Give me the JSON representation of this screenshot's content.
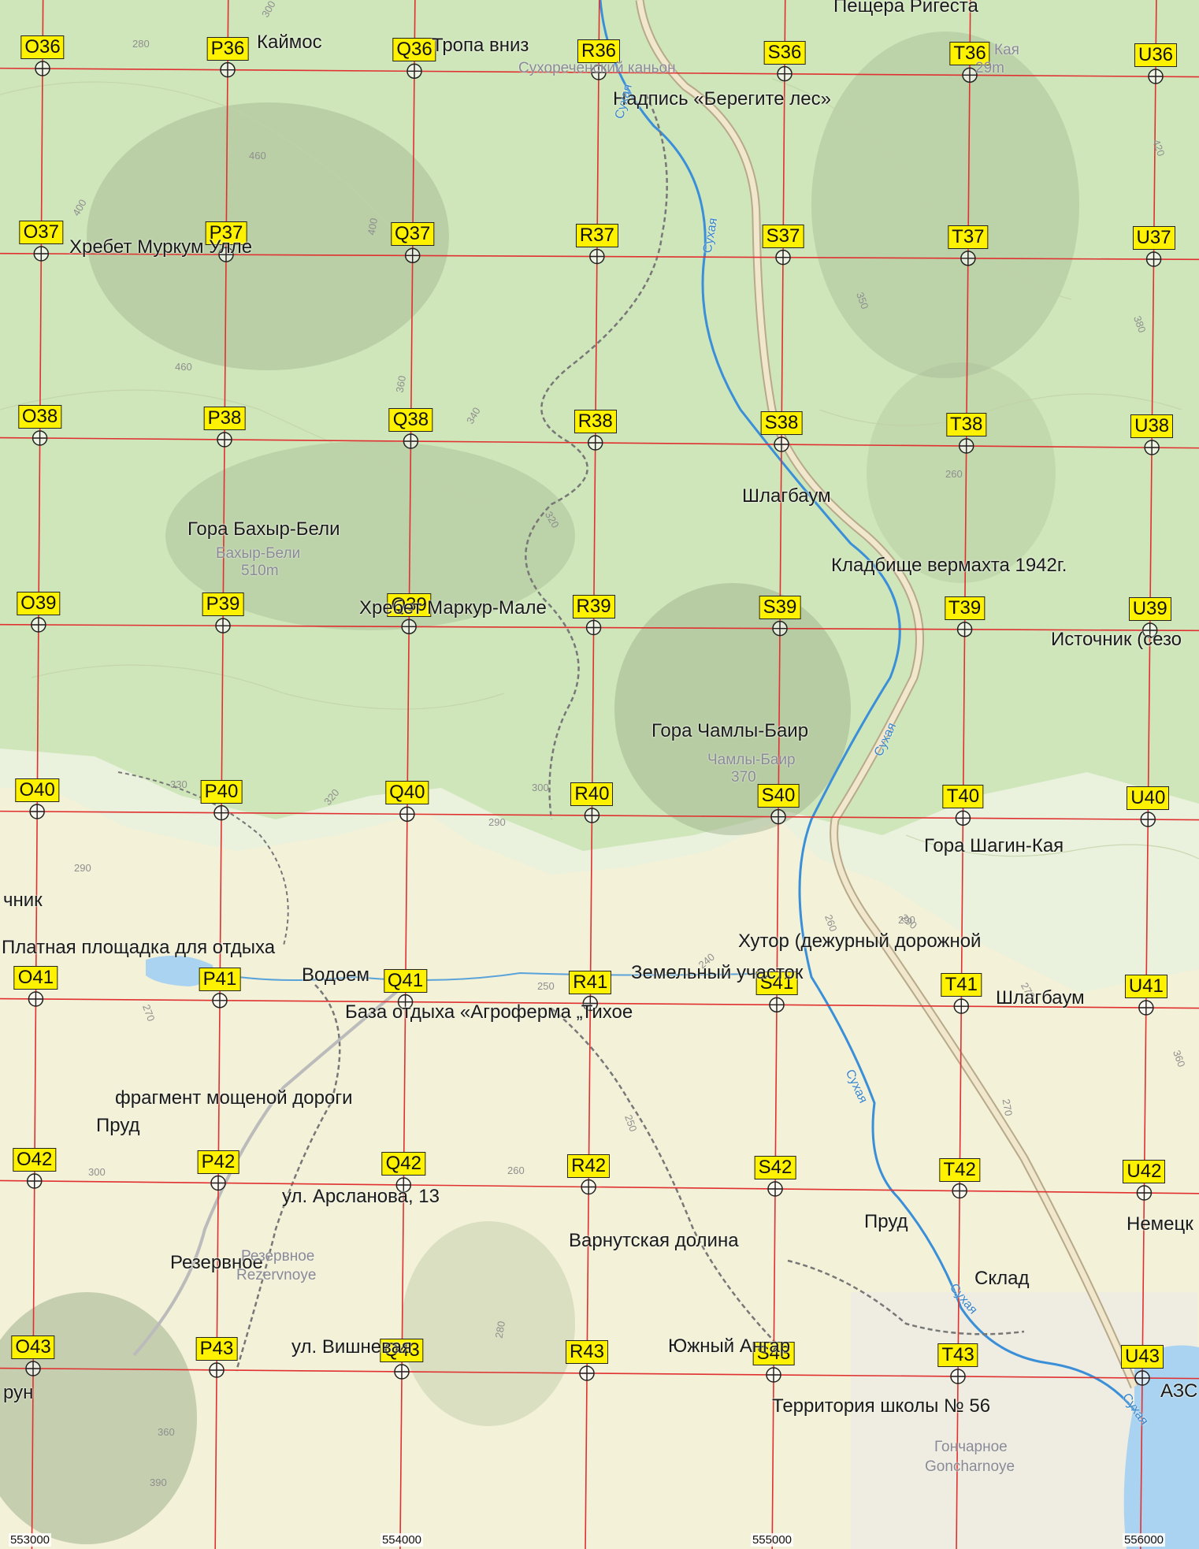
{
  "colors": {
    "grid_line": "#e03030",
    "grid_label_bg": "#fff200",
    "forest": "#c9e3b4",
    "clearing": "#f1f0d6",
    "river": "#3a8fd8",
    "water": "#a9d3f0",
    "road": "#d9c7a0"
  },
  "grid": {
    "cols": [
      "O",
      "P",
      "Q",
      "R",
      "S",
      "T",
      "U"
    ],
    "rows": [
      "36",
      "37",
      "38",
      "39",
      "40",
      "41",
      "42",
      "43"
    ]
  },
  "eastings": [
    "553000",
    "554000",
    "555000",
    "556000"
  ],
  "places": [
    "Каймос",
    "Тропа вниз",
    "Пещера Ригеста",
    "Надпись «Берегите лес»",
    "Хребет Муркум Улле",
    "Шлагбаум",
    "Гора Бахыр-Бели",
    "Кладбище вермахта 1942г.",
    "Хребет Маркур-Мале",
    "Источник (сезо",
    "Гора Чамлы-Баир",
    "Гора Шагин-Кая",
    "чник",
    "Платная площадка для отдыха",
    "Хутор (дежурный дорожной",
    "Водоем",
    "Земельный участок",
    "Шлагбаум",
    "База отдыха «Агроферма „Тихое",
    "фрагмент мощеной дороги",
    "Пруд",
    "ул. Арсланова, 13",
    "Немецк",
    "Пруд",
    "Варнутская долина",
    "Резервное",
    "Склад",
    "ул. Вишневая",
    "Южный Ангар",
    "АЗС",
    "Территория школы № 56",
    "рун"
  ],
  "map_text": [
    "Сухореченский каньон",
    "Кая",
    "29m",
    "Бахыр-Бели",
    "510m",
    "Чамлы-Баир",
    "370",
    "Резервное",
    "Rezervnoye",
    "Гончарное",
    "Goncharnoye"
  ],
  "rivers": [
    "Сухая",
    "Сухая",
    "Сухая",
    "Сухая",
    "Сухая",
    "Сухая"
  ],
  "contours": [
    "280",
    "300",
    "460",
    "400",
    "400",
    "360",
    "340",
    "460",
    "320",
    "330",
    "320",
    "300",
    "290",
    "290",
    "270",
    "300",
    "260",
    "250",
    "250",
    "240",
    "290",
    "280",
    "360",
    "390",
    "350",
    "380",
    "420",
    "260",
    "270",
    "290",
    "260",
    "270",
    "360"
  ]
}
